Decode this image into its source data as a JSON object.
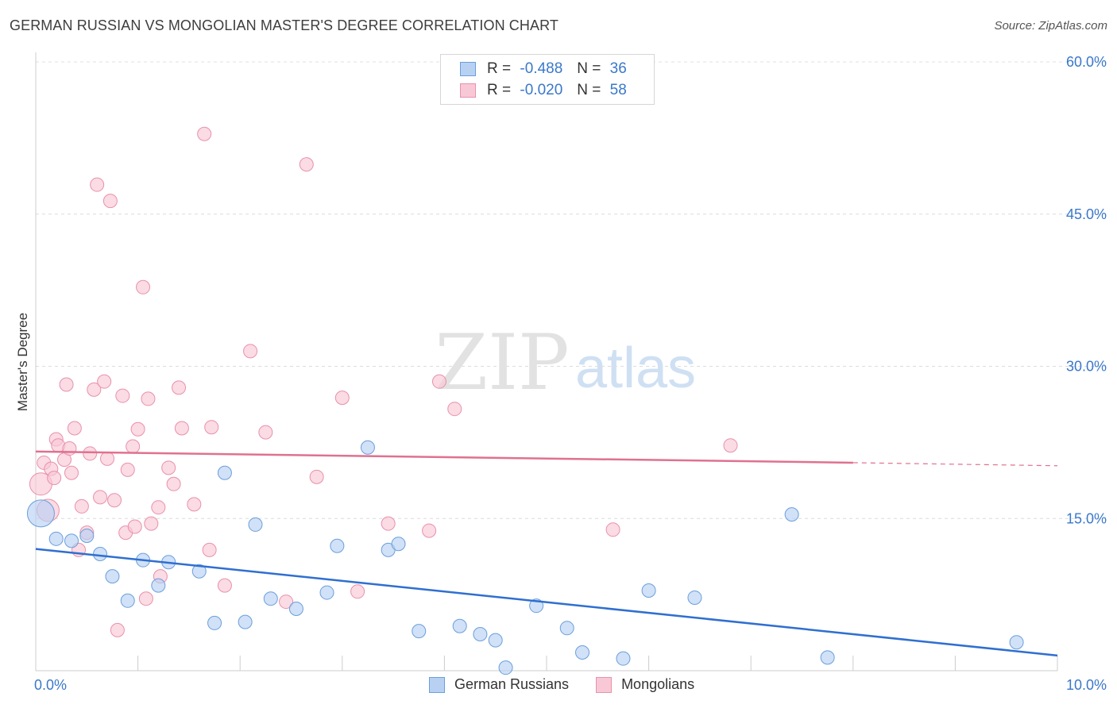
{
  "title": "GERMAN RUSSIAN VS MONGOLIAN MASTER'S DEGREE CORRELATION CHART",
  "source": "Source: ZipAtlas.com",
  "watermark": {
    "zip": "ZIP",
    "atlas": "atlas"
  },
  "legend_top": [
    {
      "r_label": "R =",
      "r_value": "-0.488",
      "n_label": "N =",
      "n_value": "36",
      "fill": "#b8d1f3",
      "stroke": "#6a9fdc"
    },
    {
      "r_label": "R =",
      "r_value": "-0.020",
      "n_label": "N =",
      "n_value": "58",
      "fill": "#f9c8d6",
      "stroke": "#e891ab"
    }
  ],
  "legend_bottom": [
    {
      "label": "German Russians",
      "fill": "#b8d1f3",
      "stroke": "#6a9fdc"
    },
    {
      "label": "Mongolians",
      "fill": "#f9c8d6",
      "stroke": "#e891ab"
    }
  ],
  "chart_data": {
    "type": "scatter",
    "title": "GERMAN RUSSIAN VS MONGOLIAN MASTER'S DEGREE CORRELATION CHART",
    "xlabel": "",
    "ylabel": "Master's Degree",
    "xlim": [
      0,
      10
    ],
    "ylim": [
      0,
      60
    ],
    "x_tick_labels": [
      "0.0%",
      "10.0%"
    ],
    "y_ticks": [
      15,
      30,
      45,
      60
    ],
    "y_tick_labels": [
      "15.0%",
      "30.0%",
      "45.0%",
      "60.0%"
    ],
    "grid": true,
    "colors": {
      "blue_fill": "#b8d1f3",
      "blue_stroke": "#6a9fdc",
      "blue_line": "#2f6fd0",
      "pink_fill": "#f9c8d6",
      "pink_stroke": "#e891ab",
      "pink_line": "#e0718f",
      "tick_text": "#3a78c9"
    },
    "series": [
      {
        "name": "German Russians",
        "r": -0.488,
        "n": 36,
        "trend": {
          "x0": 0,
          "y0": 12.0,
          "x1": 10,
          "y1": 1.5
        },
        "points": [
          {
            "x": 0.05,
            "y": 15.5,
            "big": true
          },
          {
            "x": 0.2,
            "y": 13.0
          },
          {
            "x": 0.35,
            "y": 12.8
          },
          {
            "x": 0.5,
            "y": 13.3
          },
          {
            "x": 0.63,
            "y": 11.5
          },
          {
            "x": 0.75,
            "y": 9.3
          },
          {
            "x": 0.9,
            "y": 6.9
          },
          {
            "x": 1.05,
            "y": 10.9
          },
          {
            "x": 1.2,
            "y": 8.4
          },
          {
            "x": 1.3,
            "y": 10.7
          },
          {
            "x": 1.6,
            "y": 9.8
          },
          {
            "x": 1.75,
            "y": 4.7
          },
          {
            "x": 1.85,
            "y": 19.5
          },
          {
            "x": 2.05,
            "y": 4.8
          },
          {
            "x": 2.15,
            "y": 14.4
          },
          {
            "x": 2.3,
            "y": 7.1
          },
          {
            "x": 2.55,
            "y": 6.1
          },
          {
            "x": 2.85,
            "y": 7.7
          },
          {
            "x": 2.95,
            "y": 12.3
          },
          {
            "x": 3.25,
            "y": 22.0
          },
          {
            "x": 3.45,
            "y": 11.9
          },
          {
            "x": 3.55,
            "y": 12.5
          },
          {
            "x": 3.75,
            "y": 3.9
          },
          {
            "x": 4.15,
            "y": 4.4
          },
          {
            "x": 4.35,
            "y": 3.6
          },
          {
            "x": 4.5,
            "y": 3.0
          },
          {
            "x": 4.6,
            "y": 0.3
          },
          {
            "x": 4.9,
            "y": 6.4
          },
          {
            "x": 5.2,
            "y": 4.2
          },
          {
            "x": 5.35,
            "y": 1.8
          },
          {
            "x": 5.75,
            "y": 1.2
          },
          {
            "x": 6.0,
            "y": 7.9
          },
          {
            "x": 6.45,
            "y": 7.2
          },
          {
            "x": 7.4,
            "y": 15.4
          },
          {
            "x": 7.75,
            "y": 1.3
          },
          {
            "x": 9.6,
            "y": 2.8
          }
        ]
      },
      {
        "name": "Mongolians",
        "r": -0.02,
        "n": 58,
        "trend": {
          "x0": 0,
          "y0": 21.6,
          "x1": 8.0,
          "y1": 20.5,
          "x_dash_end": 10.0,
          "y_dash_end": 20.2
        },
        "points": [
          {
            "x": 0.05,
            "y": 18.4,
            "big": true
          },
          {
            "x": 0.08,
            "y": 20.5
          },
          {
            "x": 0.12,
            "y": 15.8,
            "big": true
          },
          {
            "x": 0.15,
            "y": 19.9
          },
          {
            "x": 0.18,
            "y": 19.0
          },
          {
            "x": 0.2,
            "y": 22.8
          },
          {
            "x": 0.22,
            "y": 22.2
          },
          {
            "x": 0.28,
            "y": 20.8
          },
          {
            "x": 0.3,
            "y": 28.2
          },
          {
            "x": 0.33,
            "y": 21.9
          },
          {
            "x": 0.35,
            "y": 19.5
          },
          {
            "x": 0.38,
            "y": 23.9
          },
          {
            "x": 0.42,
            "y": 11.9
          },
          {
            "x": 0.45,
            "y": 16.2
          },
          {
            "x": 0.5,
            "y": 13.6
          },
          {
            "x": 0.53,
            "y": 21.4
          },
          {
            "x": 0.57,
            "y": 27.7
          },
          {
            "x": 0.6,
            "y": 47.9
          },
          {
            "x": 0.63,
            "y": 17.1
          },
          {
            "x": 0.67,
            "y": 28.5
          },
          {
            "x": 0.7,
            "y": 20.9
          },
          {
            "x": 0.73,
            "y": 46.3
          },
          {
            "x": 0.77,
            "y": 16.8
          },
          {
            "x": 0.8,
            "y": 4.0
          },
          {
            "x": 0.85,
            "y": 27.1
          },
          {
            "x": 0.88,
            "y": 13.6
          },
          {
            "x": 0.9,
            "y": 19.8
          },
          {
            "x": 0.95,
            "y": 22.1
          },
          {
            "x": 0.97,
            "y": 14.2
          },
          {
            "x": 1.0,
            "y": 23.8
          },
          {
            "x": 1.05,
            "y": 37.8
          },
          {
            "x": 1.08,
            "y": 7.1
          },
          {
            "x": 1.1,
            "y": 26.8
          },
          {
            "x": 1.13,
            "y": 14.5
          },
          {
            "x": 1.2,
            "y": 16.1
          },
          {
            "x": 1.22,
            "y": 9.3
          },
          {
            "x": 1.3,
            "y": 20.0
          },
          {
            "x": 1.35,
            "y": 18.4
          },
          {
            "x": 1.4,
            "y": 27.9
          },
          {
            "x": 1.43,
            "y": 23.9
          },
          {
            "x": 1.55,
            "y": 16.4
          },
          {
            "x": 1.65,
            "y": 52.9
          },
          {
            "x": 1.7,
            "y": 11.9
          },
          {
            "x": 1.72,
            "y": 24.0
          },
          {
            "x": 1.85,
            "y": 8.4
          },
          {
            "x": 2.1,
            "y": 31.5
          },
          {
            "x": 2.25,
            "y": 23.5
          },
          {
            "x": 2.45,
            "y": 6.8
          },
          {
            "x": 2.65,
            "y": 49.9
          },
          {
            "x": 2.75,
            "y": 19.1
          },
          {
            "x": 3.15,
            "y": 7.8
          },
          {
            "x": 3.0,
            "y": 26.9
          },
          {
            "x": 3.45,
            "y": 14.5
          },
          {
            "x": 3.85,
            "y": 13.8
          },
          {
            "x": 3.95,
            "y": 28.5
          },
          {
            "x": 4.1,
            "y": 25.8
          },
          {
            "x": 5.65,
            "y": 13.9
          },
          {
            "x": 6.8,
            "y": 22.2
          }
        ]
      }
    ]
  }
}
